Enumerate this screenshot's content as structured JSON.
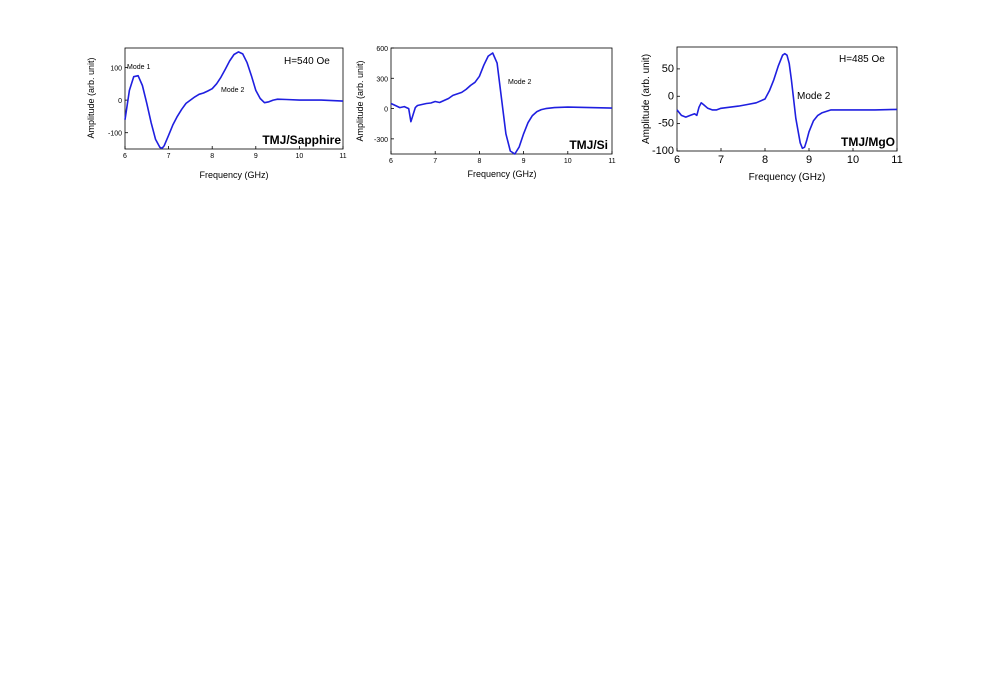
{
  "chart_data": [
    {
      "type": "line",
      "title": "",
      "xlabel": "Frequency (GHz)",
      "ylabel": "Amplitude (arb. unit)",
      "xlim": [
        6,
        11
      ],
      "ylim": [
        -150,
        160
      ],
      "xticks": [
        6,
        7,
        8,
        9,
        10,
        11
      ],
      "yticks": [
        -100,
        0,
        100
      ],
      "grid": false,
      "color": "#1f1fe0",
      "annotations": {
        "field": "H=540 Oe",
        "sample": "TMJ/Sapphire",
        "modes": [
          {
            "text": "Mode 1",
            "x": 6.1,
            "y": 100
          },
          {
            "text": "Mode 2",
            "x": 8.2,
            "y": 30
          }
        ]
      },
      "series": [
        {
          "x": [
            6.0,
            6.1,
            6.2,
            6.3,
            6.4,
            6.5,
            6.6,
            6.7,
            6.8,
            6.85,
            6.9,
            7.0,
            7.1,
            7.2,
            7.3,
            7.4,
            7.5,
            7.6,
            7.7,
            7.8,
            7.9,
            8.0,
            8.1,
            8.2,
            8.3,
            8.4,
            8.5,
            8.6,
            8.7,
            8.8,
            8.9,
            9.0,
            9.1,
            9.2,
            9.3,
            9.4,
            9.5,
            9.7,
            10.0,
            10.5,
            11.0
          ],
          "values": [
            -60,
            30,
            72,
            75,
            45,
            -10,
            -70,
            -120,
            -145,
            -148,
            -140,
            -108,
            -75,
            -50,
            -28,
            -10,
            0,
            10,
            18,
            22,
            28,
            35,
            50,
            70,
            95,
            120,
            140,
            148,
            142,
            115,
            75,
            30,
            5,
            -8,
            -5,
            0,
            3,
            2,
            0,
            0,
            -3
          ]
        }
      ]
    },
    {
      "type": "line",
      "title": "",
      "xlabel": "Frequency (GHz)",
      "ylabel": "Amplitude (arb. unit)",
      "xlim": [
        6,
        11
      ],
      "ylim": [
        -450,
        600
      ],
      "xticks": [
        6,
        7,
        8,
        9,
        10,
        11
      ],
      "yticks": [
        -300,
        0,
        300,
        600
      ],
      "grid": false,
      "color": "#1f1fe0",
      "annotations": {
        "sample": "TMJ/Si",
        "modes": [
          {
            "text": "Mode 2",
            "x": 8.6,
            "y": 230
          }
        ]
      },
      "series": [
        {
          "x": [
            6.0,
            6.1,
            6.2,
            6.3,
            6.4,
            6.45,
            6.5,
            6.55,
            6.6,
            6.7,
            6.8,
            6.9,
            7.0,
            7.1,
            7.2,
            7.3,
            7.4,
            7.5,
            7.6,
            7.7,
            7.8,
            7.9,
            8.0,
            8.1,
            8.2,
            8.3,
            8.4,
            8.5,
            8.6,
            8.7,
            8.8,
            8.9,
            9.0,
            9.1,
            9.2,
            9.3,
            9.4,
            9.5,
            9.7,
            10.0,
            10.5,
            11.0
          ],
          "values": [
            50,
            30,
            10,
            20,
            0,
            -130,
            -60,
            10,
            30,
            40,
            50,
            55,
            70,
            60,
            80,
            100,
            130,
            145,
            160,
            190,
            230,
            260,
            320,
            430,
            520,
            550,
            450,
            100,
            -250,
            -420,
            -450,
            -380,
            -250,
            -140,
            -70,
            -30,
            -10,
            0,
            10,
            15,
            10,
            5
          ]
        }
      ]
    },
    {
      "type": "line",
      "title": "",
      "xlabel": "Frequency (GHz)",
      "ylabel": "Amplitude (arb. unit)",
      "xlim": [
        6,
        11
      ],
      "ylim": [
        -100,
        90
      ],
      "xticks": [
        6,
        7,
        8,
        9,
        10,
        11
      ],
      "yticks": [
        -100,
        -50,
        0,
        50
      ],
      "grid": false,
      "color": "#1f1fe0",
      "annotations": {
        "field": "H=485 Oe",
        "sample": "TMJ/MgO",
        "modes": [
          {
            "text": "Mode 2",
            "x": 8.75,
            "y": -5
          }
        ]
      },
      "series": [
        {
          "x": [
            6.0,
            6.1,
            6.2,
            6.3,
            6.4,
            6.45,
            6.5,
            6.55,
            6.6,
            6.7,
            6.8,
            6.9,
            7.0,
            7.2,
            7.4,
            7.6,
            7.8,
            8.0,
            8.1,
            8.2,
            8.3,
            8.4,
            8.45,
            8.5,
            8.55,
            8.6,
            8.7,
            8.8,
            8.85,
            8.9,
            8.95,
            9.0,
            9.1,
            9.2,
            9.3,
            9.5,
            9.7,
            10.0,
            10.5,
            11.0
          ],
          "values": [
            -25,
            -35,
            -38,
            -35,
            -32,
            -35,
            -20,
            -12,
            -15,
            -22,
            -25,
            -25,
            -22,
            -20,
            -18,
            -15,
            -12,
            -5,
            10,
            30,
            55,
            75,
            78,
            75,
            60,
            30,
            -40,
            -85,
            -95,
            -93,
            -80,
            -65,
            -45,
            -35,
            -30,
            -25,
            -25,
            -25,
            -25,
            -24
          ]
        }
      ]
    }
  ]
}
